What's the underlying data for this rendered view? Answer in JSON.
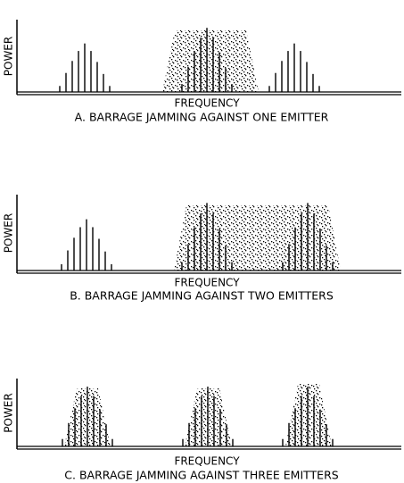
{
  "panels": [
    {
      "y_label": "POWER",
      "x_label": "FREQUENCY",
      "caption": "A.  BARRAGE JAMMING AGAINST ONE EMITTER"
    },
    {
      "y_label": "POWER",
      "x_label": "FREQUENCY",
      "caption": "B.  BARRAGE JAMMING AGAINST TWO EMITTERS"
    },
    {
      "y_label": "POWER",
      "x_label": "FREQUENCY",
      "caption": "C.  BARRAGE JAMMING AGAINST THREE EMITTERS"
    }
  ]
}
